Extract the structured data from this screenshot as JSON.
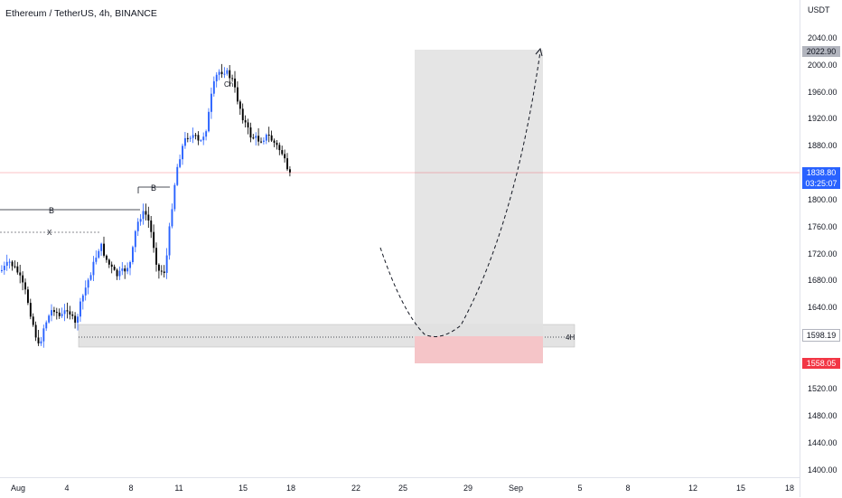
{
  "header": {
    "title": "Ethereum / TetherUS, 4h, BINANCE"
  },
  "price_axis": {
    "unit": "USDT",
    "ticks": [
      "2040.00",
      "2000.00",
      "1960.00",
      "1920.00",
      "1880.00",
      "1800.00",
      "1760.00",
      "1720.00",
      "1680.00",
      "1640.00",
      "1520.00",
      "1480.00",
      "1440.00",
      "1400.00"
    ],
    "target_badge": "2022.90",
    "last_price": "1838.80",
    "countdown": "03:25:07",
    "mid_badge": "1598.19",
    "stop_badge": "1558.05"
  },
  "time_axis": {
    "ticks": [
      "Aug",
      "4",
      "8",
      "11",
      "15",
      "18",
      "22",
      "25",
      "29",
      "Sep",
      "5",
      "8",
      "12",
      "15",
      "18"
    ]
  },
  "annotations": {
    "level_b_1": "B",
    "level_b_2": "B",
    "level_x": "X",
    "ch_label": "Ch",
    "zone_label": "4H"
  },
  "colors": {
    "up": "#2962ff",
    "down": "#000000",
    "target_zone": "#e1e1e1",
    "stop_zone": "#f5c5c8",
    "demand_zone": "#d9d9d9",
    "last_price": "#2962ff",
    "stop": "#f23645"
  }
}
